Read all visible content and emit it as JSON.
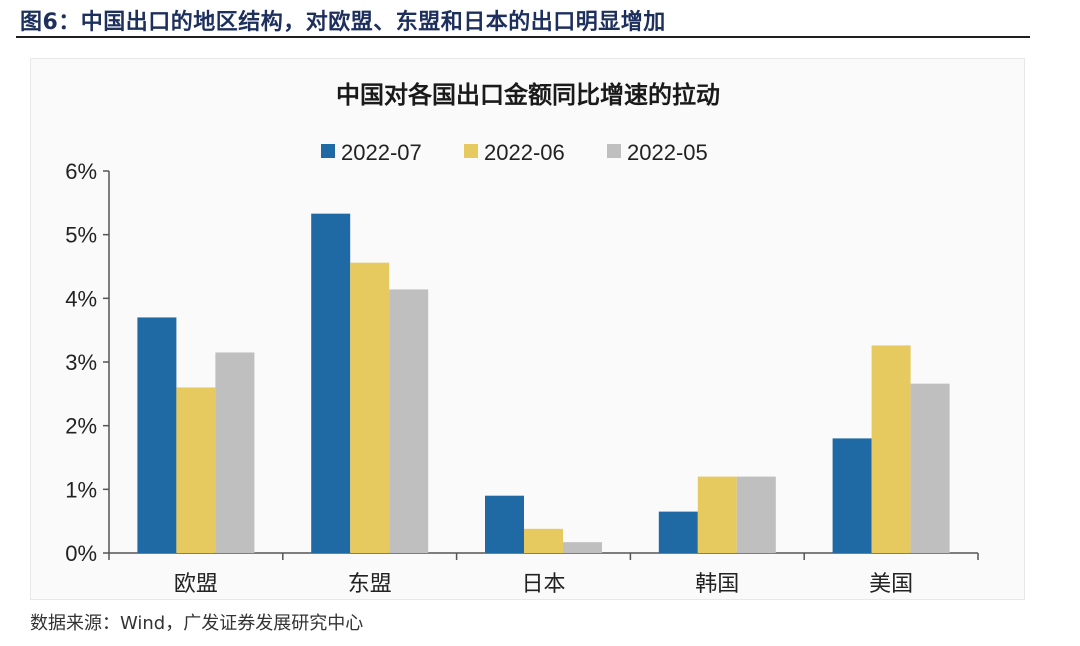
{
  "figure": {
    "title": "图6：中国出口的地区结构，对欧盟、东盟和日本的出口明显增加",
    "source": "数据来源：Wind，广发证券发展研究中心"
  },
  "chart_data": {
    "type": "bar",
    "title": "中国对各国出口金额同比增速的拉动",
    "xlabel": "",
    "ylabel": "",
    "categories": [
      "欧盟",
      "东盟",
      "日本",
      "韩国",
      "美国"
    ],
    "series": [
      {
        "name": "2022-07",
        "color": "#1f6aa5",
        "values": [
          3.7,
          5.33,
          0.9,
          0.65,
          1.8
        ]
      },
      {
        "name": "2022-06",
        "color": "#e6c95f",
        "values": [
          2.6,
          4.56,
          0.38,
          1.2,
          3.26
        ]
      },
      {
        "name": "2022-05",
        "color": "#bfbfbf",
        "values": [
          3.15,
          4.14,
          0.17,
          1.2,
          2.66
        ]
      }
    ],
    "ylim": [
      0,
      6
    ],
    "yticks": [
      0,
      1,
      2,
      3,
      4,
      5,
      6
    ],
    "ytick_labels": [
      "0%",
      "1%",
      "2%",
      "3%",
      "4%",
      "5%",
      "6%"
    ],
    "grid": false,
    "legend": "top-center"
  }
}
